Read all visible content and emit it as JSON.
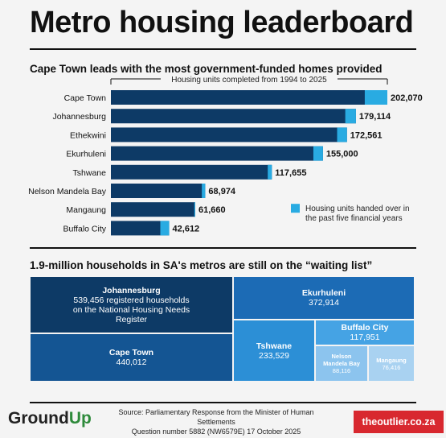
{
  "title": "Metro housing leaderboard",
  "bar_section": {
    "subtitle": "Cape Town leads with the most government-funded homes provided",
    "legend_total": "Housing units completed from 1994 to 2025",
    "legend_recent_line1": "Housing units handed over in",
    "legend_recent_line2": "the past five financial years"
  },
  "treemap_section": {
    "subtitle": "1.9-million households in SA's metros are still on the “waiting list”"
  },
  "colors": {
    "total_bar": "#0d3a66",
    "recent_bar": "#29abe2",
    "tm_joburg": "#0d3a66",
    "tm_capetown": "#145593",
    "tm_ekurhuleni": "#1c6bb5",
    "tm_tshwane": "#2c8fd6",
    "tm_buffalo": "#45a3e4",
    "tm_nmb": "#8cc4ee",
    "tm_mangaung": "#a9d2f1"
  },
  "chart_data": [
    {
      "type": "bar",
      "orientation": "horizontal",
      "title": "Cape Town leads with the most government-funded homes provided",
      "categories": [
        "Cape Town",
        "Johannesburg",
        "Ethekwini",
        "Ekurhuleni",
        "Tshwane",
        "Nelson Mandela Bay",
        "Mangaung",
        "Buffalo City"
      ],
      "series": [
        {
          "name": "Housing units completed from 1994 to 2025",
          "values": [
            202070,
            179114,
            172561,
            155000,
            117655,
            68974,
            61660,
            42612
          ],
          "labels": [
            "202,070",
            "179,114",
            "172,561",
            "155,000",
            "117,655",
            "68,974",
            "61,660",
            "42,612"
          ]
        },
        {
          "name": "Housing units handed over in the past five financial years",
          "values": [
            16500,
            7800,
            7200,
            7000,
            3000,
            2500,
            700,
            6500
          ]
        }
      ],
      "xlim": [
        0,
        202070
      ],
      "grid": false
    },
    {
      "type": "treemap",
      "title": "1.9-million households in SA's metros are still on the “waiting list”",
      "items": [
        {
          "name": "Johannesburg",
          "value": 539456,
          "label": "539,456 registered households on the National Housing Needs Register"
        },
        {
          "name": "Cape Town",
          "value": 440012,
          "label": "440,012"
        },
        {
          "name": "Ekurhuleni",
          "value": 372914,
          "label": "372,914"
        },
        {
          "name": "Tshwane",
          "value": 233529,
          "label": "233,529"
        },
        {
          "name": "Buffalo City",
          "value": 117951,
          "label": "117,951"
        },
        {
          "name": "Nelson Mandela Bay",
          "value": 88116,
          "label": "88,116"
        },
        {
          "name": "Mangaung",
          "value": 76416,
          "label": "76,416"
        }
      ]
    }
  ],
  "footer": {
    "logo_part1": "Ground",
    "logo_part2": "Up",
    "source_line1": "Source: Parliamentary Response from the Minister of Human Settlements",
    "source_line2": "Question number 5882 (NW6579E) 17 October 2025",
    "badge": "theoutlier.co.za"
  }
}
